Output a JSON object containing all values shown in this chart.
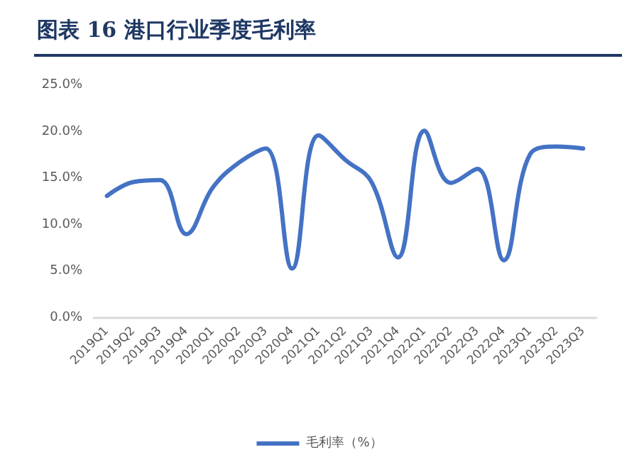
{
  "chart_data": {
    "type": "line",
    "title": "图表 16   港口行业季度毛利率",
    "categories": [
      "2019Q1",
      "2019Q2",
      "2019Q3",
      "2019Q4",
      "2020Q1",
      "2020Q2",
      "2020Q3",
      "2020Q4",
      "2021Q1",
      "2021Q2",
      "2021Q3",
      "2021Q4",
      "2022Q1",
      "2022Q2",
      "2022Q3",
      "2022Q4",
      "2023Q1",
      "2023Q2",
      "2023Q3"
    ],
    "series": [
      {
        "name": "毛利率（%）",
        "color": "#4472c4",
        "values": [
          13.1,
          14.6,
          14.8,
          9.0,
          14.0,
          16.7,
          18.2,
          5.3,
          19.6,
          17.0,
          14.6,
          6.5,
          20.1,
          14.5,
          16.0,
          6.2,
          17.6,
          18.4,
          18.2
        ]
      }
    ],
    "ylim": [
      0,
      25
    ],
    "yticks": [
      {
        "value": 0,
        "label": "0.0%"
      },
      {
        "value": 5,
        "label": "5.0%"
      },
      {
        "value": 10,
        "label": "10.0%"
      },
      {
        "value": 15,
        "label": "15.0%"
      },
      {
        "value": 20,
        "label": "20.0%"
      },
      {
        "value": 25,
        "label": "25.0%"
      }
    ],
    "grid": false,
    "legend": "bottom",
    "marker": "none",
    "line_style": "solid"
  }
}
